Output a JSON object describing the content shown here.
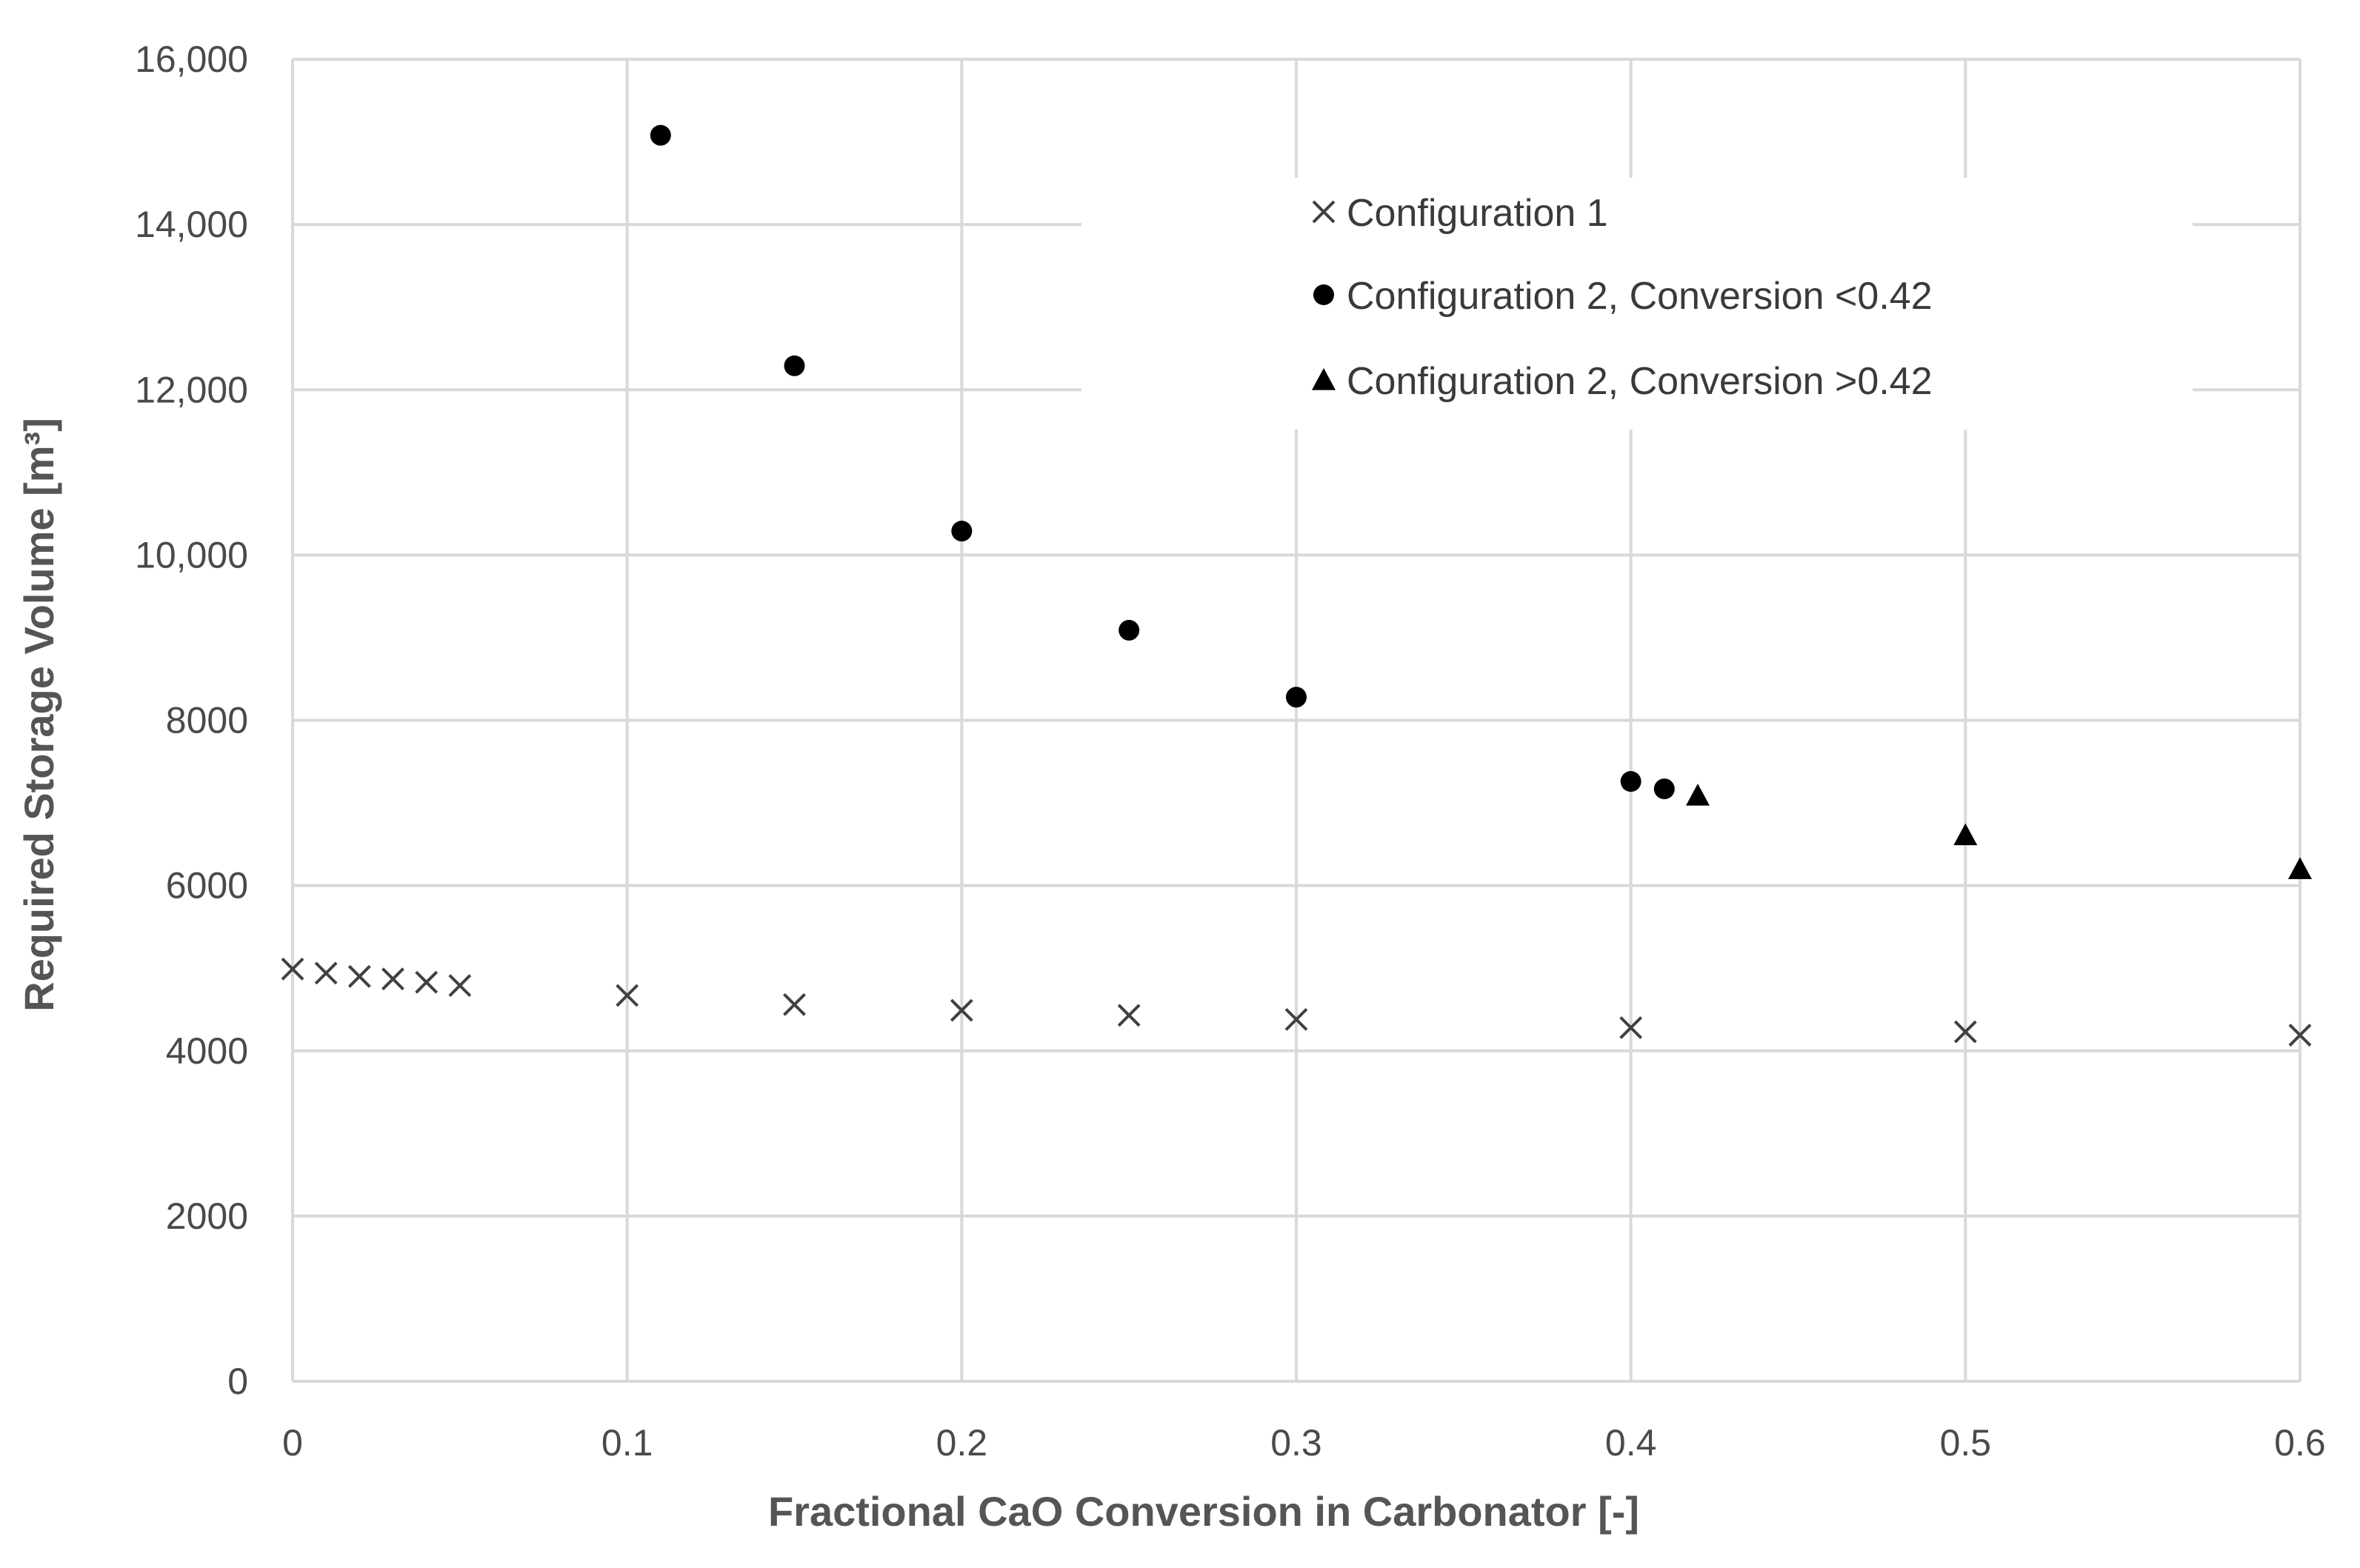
{
  "chart_data": {
    "type": "scatter",
    "title": "",
    "xlabel": "Fractional  CaO Conversion  in Carbonator  [-]",
    "ylabel": "Required Storage Volume [m³]",
    "xlim": [
      0,
      0.6
    ],
    "ylim": [
      0,
      16000
    ],
    "grid": true,
    "legend_position": "upper-right",
    "x_ticks": [
      "0",
      "0.1",
      "0.2",
      "0.3",
      "0.4",
      "0.5",
      "0.6"
    ],
    "y_ticks": [
      "0",
      "2000",
      "4000",
      "6000",
      "8000",
      "10,000",
      "12,000",
      "14,000",
      "16,000"
    ],
    "series": [
      {
        "name": "Configuration 1",
        "marker": "x",
        "color": "#404040",
        "x": [
          0,
          0.01,
          0.02,
          0.03,
          0.04,
          0.05,
          0.1,
          0.15,
          0.2,
          0.25,
          0.3,
          0.4,
          0.5,
          0.6
        ],
        "y": [
          4990,
          4940,
          4900,
          4870,
          4830,
          4790,
          4670,
          4560,
          4490,
          4430,
          4380,
          4280,
          4230,
          4190
        ]
      },
      {
        "name": "Configuration 2, Conversion <0.42",
        "marker": "circle",
        "color": "#000000",
        "x": [
          0.11,
          0.15,
          0.2,
          0.25,
          0.3,
          0.4,
          0.41
        ],
        "y": [
          15080,
          12290,
          10290,
          9090,
          8280,
          7260,
          7170
        ]
      },
      {
        "name": "Configuration 2, Conversion >0.42",
        "marker": "triangle",
        "color": "#000000",
        "x": [
          0.42,
          0.5,
          0.6
        ],
        "y": [
          7090,
          6610,
          6200
        ]
      }
    ]
  }
}
